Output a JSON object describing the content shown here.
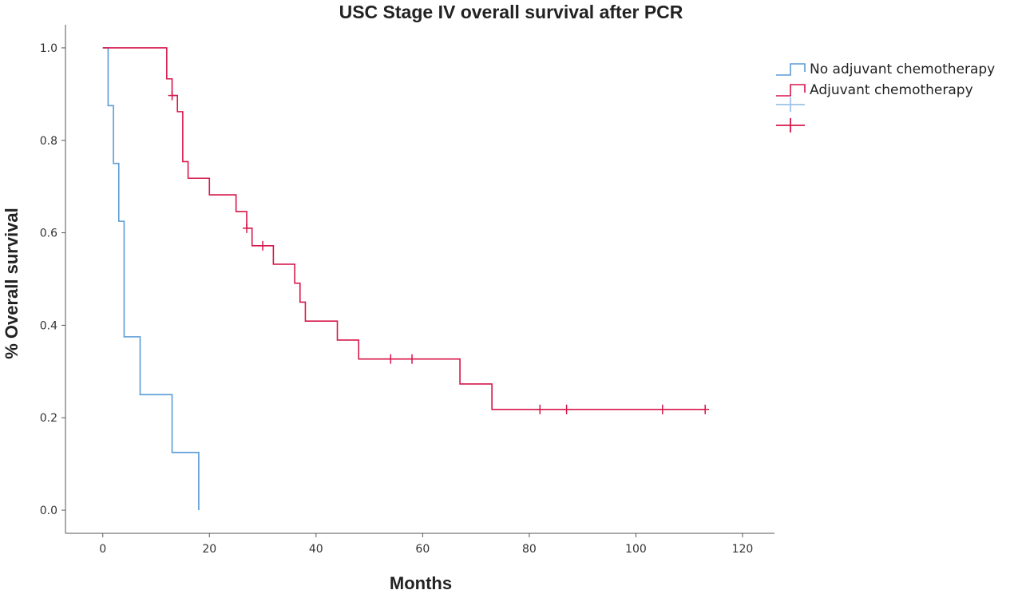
{
  "chart_data": {
    "type": "line",
    "subtype": "kaplan-meier step",
    "title": "USC Stage IV overall survival after PCR",
    "xlabel": "Months",
    "ylabel": "% Overall survival",
    "xlim": [
      -7,
      126
    ],
    "ylim": [
      -0.05,
      1.05
    ],
    "xticks": [
      0,
      20,
      40,
      60,
      80,
      100,
      120
    ],
    "yticks": [
      0.0,
      0.2,
      0.4,
      0.6,
      0.8,
      1.0
    ],
    "xtick_labels": [
      "0",
      "20",
      "40",
      "60",
      "80",
      "100",
      "120"
    ],
    "ytick_labels": [
      "0.0",
      "0.2",
      "0.4",
      "0.6",
      "0.8",
      "1.0"
    ],
    "grid": false,
    "legend_position": "top-right outside",
    "series": [
      {
        "name": "No adjuvant chemotherapy",
        "color": "#5b9bd5",
        "step_x": [
          1,
          2,
          3,
          4,
          7,
          13,
          18
        ],
        "step_y": [
          1.0,
          0.875,
          0.75,
          0.625,
          0.375,
          0.25,
          0.125,
          0.0
        ],
        "end_x": 18,
        "censored": []
      },
      {
        "name": "Adjuvant chemotherapy",
        "color": "#d6174a",
        "step_x": [
          12,
          13,
          14,
          15,
          16,
          20,
          25,
          27,
          28,
          32,
          36,
          37,
          38,
          44,
          48,
          67,
          73
        ],
        "step_y": [
          1.0,
          0.933,
          0.897,
          0.862,
          0.754,
          0.718,
          0.682,
          0.646,
          0.61,
          0.572,
          0.532,
          0.491,
          0.45,
          0.409,
          0.368,
          0.327,
          0.273,
          0.218
        ],
        "end_x": 113,
        "censored": [
          {
            "x": 13,
            "y": 0.897
          },
          {
            "x": 27,
            "y": 0.61
          },
          {
            "x": 30,
            "y": 0.572
          },
          {
            "x": 54,
            "y": 0.327
          },
          {
            "x": 58,
            "y": 0.327
          },
          {
            "x": 82,
            "y": 0.218
          },
          {
            "x": 87,
            "y": 0.218
          },
          {
            "x": 105,
            "y": 0.218
          },
          {
            "x": 113,
            "y": 0.218
          }
        ]
      }
    ],
    "legend_censor_entries": [
      {
        "series": "No adjuvant chemotherapy",
        "color": "#9cc3e6"
      },
      {
        "series": "Adjuvant chemotherapy",
        "color": "#d6174a"
      }
    ]
  }
}
